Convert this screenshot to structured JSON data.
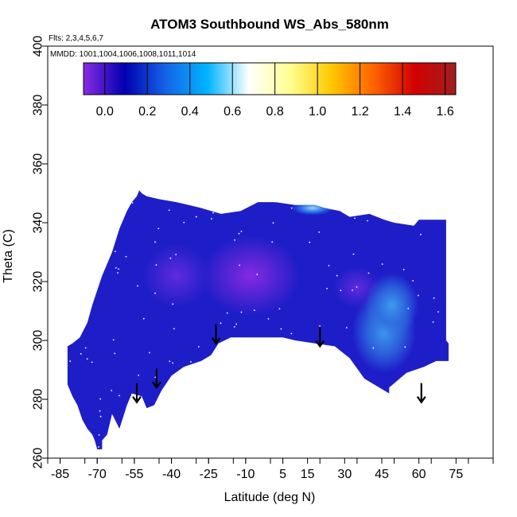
{
  "chart_data": {
    "type": "heatmap",
    "title": "ATOM3 Southbound WS_Abs_580nm",
    "subtitle_flights": "Flts: 2,3,4,5,6,7",
    "subtitle_dates": "MMDD: 1001,1004,1006,1008,1011,1014",
    "xlabel": "Latitude (deg N)",
    "ylabel": "Theta (C)",
    "xlim": [
      -90,
      90
    ],
    "ylim": [
      260,
      400
    ],
    "x_ticks": [
      -85,
      -70,
      -55,
      -40,
      -25,
      -10,
      5,
      15,
      30,
      45,
      60,
      75
    ],
    "y_ticks": [
      260,
      280,
      300,
      320,
      340,
      360,
      380,
      400
    ],
    "colorbar": {
      "range": [
        -0.1,
        1.65
      ],
      "ticks": [
        0.0,
        0.2,
        0.4,
        0.6,
        0.8,
        1.0,
        1.2,
        1.4,
        1.6
      ],
      "tick_labels": [
        "0.0",
        "0.2",
        "0.4",
        "0.6",
        "0.8",
        "1.0",
        "1.2",
        "1.4",
        "1.6"
      ],
      "colors": [
        "#8a2be2",
        "#0000b0",
        "#1565e8",
        "#00b4ff",
        "#ffffff",
        "#ffff90",
        "#ffc800",
        "#ff6400",
        "#d20000",
        "#a02020"
      ],
      "placement": "top"
    },
    "field_polygon": [
      [
        -70,
        263
      ],
      [
        -68,
        263
      ],
      [
        -68,
        266
      ],
      [
        -66,
        268
      ],
      [
        -64,
        275
      ],
      [
        -61,
        270
      ],
      [
        -58,
        278
      ],
      [
        -56,
        282
      ],
      [
        -52,
        281
      ],
      [
        -50,
        277
      ],
      [
        -47,
        278
      ],
      [
        -44,
        283
      ],
      [
        -40,
        288
      ],
      [
        -35,
        291
      ],
      [
        -28,
        293
      ],
      [
        -24,
        295
      ],
      [
        -21,
        299
      ],
      [
        -16,
        301
      ],
      [
        -5,
        301
      ],
      [
        5,
        301
      ],
      [
        10,
        300
      ],
      [
        18,
        299
      ],
      [
        26,
        298
      ],
      [
        32,
        294
      ],
      [
        38,
        287
      ],
      [
        44,
        284
      ],
      [
        48,
        282
      ],
      [
        48,
        284
      ],
      [
        55,
        289
      ],
      [
        62,
        291
      ],
      [
        67,
        293
      ],
      [
        72,
        293
      ],
      [
        72,
        299
      ],
      [
        71,
        300
      ],
      [
        71,
        341
      ],
      [
        65,
        341
      ],
      [
        60,
        341
      ],
      [
        58,
        339
      ],
      [
        50,
        340
      ],
      [
        46,
        341
      ],
      [
        40,
        343
      ],
      [
        32,
        342
      ],
      [
        28,
        344
      ],
      [
        22,
        345
      ],
      [
        18,
        346
      ],
      [
        10,
        346
      ],
      [
        2,
        347
      ],
      [
        -5,
        347
      ],
      [
        -12,
        344
      ],
      [
        -20,
        343
      ],
      [
        -28,
        345
      ],
      [
        -33,
        346
      ],
      [
        -38,
        347
      ],
      [
        -45,
        348
      ],
      [
        -50,
        349
      ],
      [
        -52,
        350
      ],
      [
        -53,
        351
      ],
      [
        -54,
        349
      ],
      [
        -56,
        347
      ],
      [
        -58,
        344
      ],
      [
        -61,
        338
      ],
      [
        -64,
        330
      ],
      [
        -68,
        322
      ],
      [
        -72,
        312
      ],
      [
        -74,
        306
      ],
      [
        -77,
        301
      ],
      [
        -80,
        299
      ],
      [
        -82,
        298
      ],
      [
        -82,
        285
      ],
      [
        -80,
        281
      ],
      [
        -78,
        278
      ],
      [
        -76,
        273
      ],
      [
        -74,
        270
      ],
      [
        -72,
        268
      ],
      [
        -71,
        266
      ]
    ],
    "features": [
      {
        "kind": "low",
        "lat": -8,
        "theta": 322,
        "value": -0.1
      },
      {
        "kind": "low",
        "lat": -38,
        "theta": 322,
        "value": -0.05
      },
      {
        "kind": "low",
        "lat": 35,
        "theta": 318,
        "value": 0.02
      },
      {
        "kind": "high",
        "lat": 46,
        "theta": 303,
        "value": 0.38
      },
      {
        "kind": "high",
        "lat": 49,
        "theta": 312,
        "value": 0.28
      },
      {
        "kind": "high",
        "lat": 17,
        "theta": 345,
        "value": 0.45
      }
    ],
    "flight_arrows_lat": [
      -54,
      -46,
      -22,
      20,
      61
    ],
    "arrow_heads_theta": [
      279,
      284,
      299,
      298,
      279
    ]
  }
}
